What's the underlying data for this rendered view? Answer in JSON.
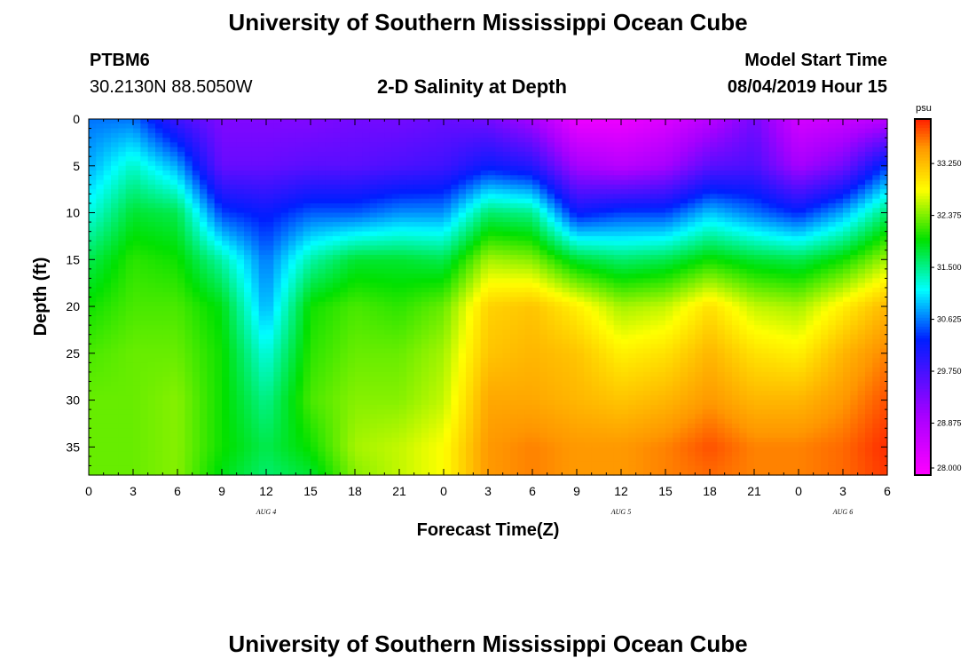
{
  "header": {
    "title": "University of Southern Mississippi Ocean Cube",
    "station_id": "PTBM6",
    "station_coords": "30.2130N 88.5050W",
    "plot_title": "2-D Salinity at Depth",
    "model_start_label": "Model Start Time",
    "model_start_value": "08/04/2019 Hour 15"
  },
  "footer": {
    "title": "University of Southern Mississippi Ocean Cube"
  },
  "chart_data": {
    "type": "heatmap",
    "title": "2-D Salinity at Depth",
    "xlabel": "Forecast Time(Z)",
    "ylabel": "Depth (ft)",
    "units": "psu",
    "x_ticks": [
      "0",
      "3",
      "6",
      "9",
      "12",
      "15",
      "18",
      "21",
      "0",
      "3",
      "6",
      "9",
      "12",
      "15",
      "18",
      "21",
      "0",
      "3",
      "6"
    ],
    "day_labels": [
      {
        "label": "AUG 4",
        "hour": 12
      },
      {
        "label": "AUG 5",
        "hour": 36
      },
      {
        "label": "AUG 6",
        "hour": 51
      }
    ],
    "x_range_hours": [
      0,
      54
    ],
    "y_ticks": [
      0,
      5,
      10,
      15,
      20,
      25,
      30,
      35
    ],
    "y_range": [
      0,
      38
    ],
    "colorbar": {
      "min": 28.0,
      "max": 34.0,
      "ticks": [
        "28.000",
        "28.875",
        "29.750",
        "30.625",
        "31.500",
        "32.375",
        "33.250"
      ]
    },
    "hours": [
      0,
      3,
      6,
      9,
      12,
      15,
      18,
      21,
      24,
      27,
      30,
      33,
      36,
      39,
      42,
      45,
      48,
      51,
      54
    ],
    "depths": [
      0,
      5,
      10,
      15,
      20,
      25,
      30,
      35,
      38
    ],
    "salinity": [
      [
        30.6,
        30.6,
        29.8,
        29.3,
        29.3,
        29.3,
        29.4,
        29.4,
        29.5,
        29.4,
        29.0,
        28.2,
        28.2,
        28.4,
        28.8,
        29.4,
        28.5,
        28.6,
        28.8
      ],
      [
        30.8,
        31.3,
        30.8,
        29.5,
        29.5,
        29.6,
        29.6,
        29.7,
        29.8,
        30.2,
        30.0,
        29.0,
        28.8,
        29.0,
        29.6,
        29.7,
        29.0,
        29.4,
        30.4
      ],
      [
        31.2,
        31.8,
        31.7,
        30.4,
        30.2,
        30.5,
        30.5,
        30.7,
        30.7,
        31.6,
        31.5,
        30.2,
        30.4,
        30.4,
        30.9,
        30.6,
        30.3,
        30.8,
        31.6
      ],
      [
        31.7,
        32.1,
        32.0,
        31.4,
        30.6,
        31.4,
        31.8,
        31.8,
        31.7,
        32.5,
        32.4,
        31.8,
        31.6,
        31.7,
        32.0,
        31.8,
        31.7,
        32.0,
        32.5
      ],
      [
        32.0,
        32.2,
        32.2,
        31.9,
        30.8,
        32.0,
        32.2,
        32.1,
        32.3,
        33.1,
        33.2,
        32.9,
        32.5,
        32.6,
        33.0,
        32.6,
        32.5,
        32.9,
        33.3
      ],
      [
        32.2,
        32.3,
        32.3,
        32.0,
        31.2,
        32.1,
        32.3,
        32.3,
        32.5,
        33.2,
        33.3,
        33.2,
        32.9,
        33.0,
        33.3,
        33.0,
        32.9,
        33.3,
        33.6
      ],
      [
        32.3,
        32.3,
        32.4,
        32.0,
        31.5,
        32.2,
        32.4,
        32.4,
        32.6,
        33.4,
        33.4,
        33.3,
        33.2,
        33.3,
        33.5,
        33.3,
        33.3,
        33.5,
        33.8
      ],
      [
        32.3,
        32.3,
        32.4,
        32.0,
        31.7,
        32.0,
        32.5,
        32.6,
        32.8,
        33.5,
        33.6,
        33.5,
        33.5,
        33.6,
        33.8,
        33.6,
        33.6,
        33.7,
        33.95
      ],
      [
        32.3,
        32.3,
        32.4,
        31.9,
        31.6,
        31.8,
        32.4,
        32.6,
        32.8,
        33.5,
        33.6,
        33.5,
        33.5,
        33.6,
        33.7,
        33.6,
        33.6,
        33.7,
        33.9
      ]
    ]
  }
}
